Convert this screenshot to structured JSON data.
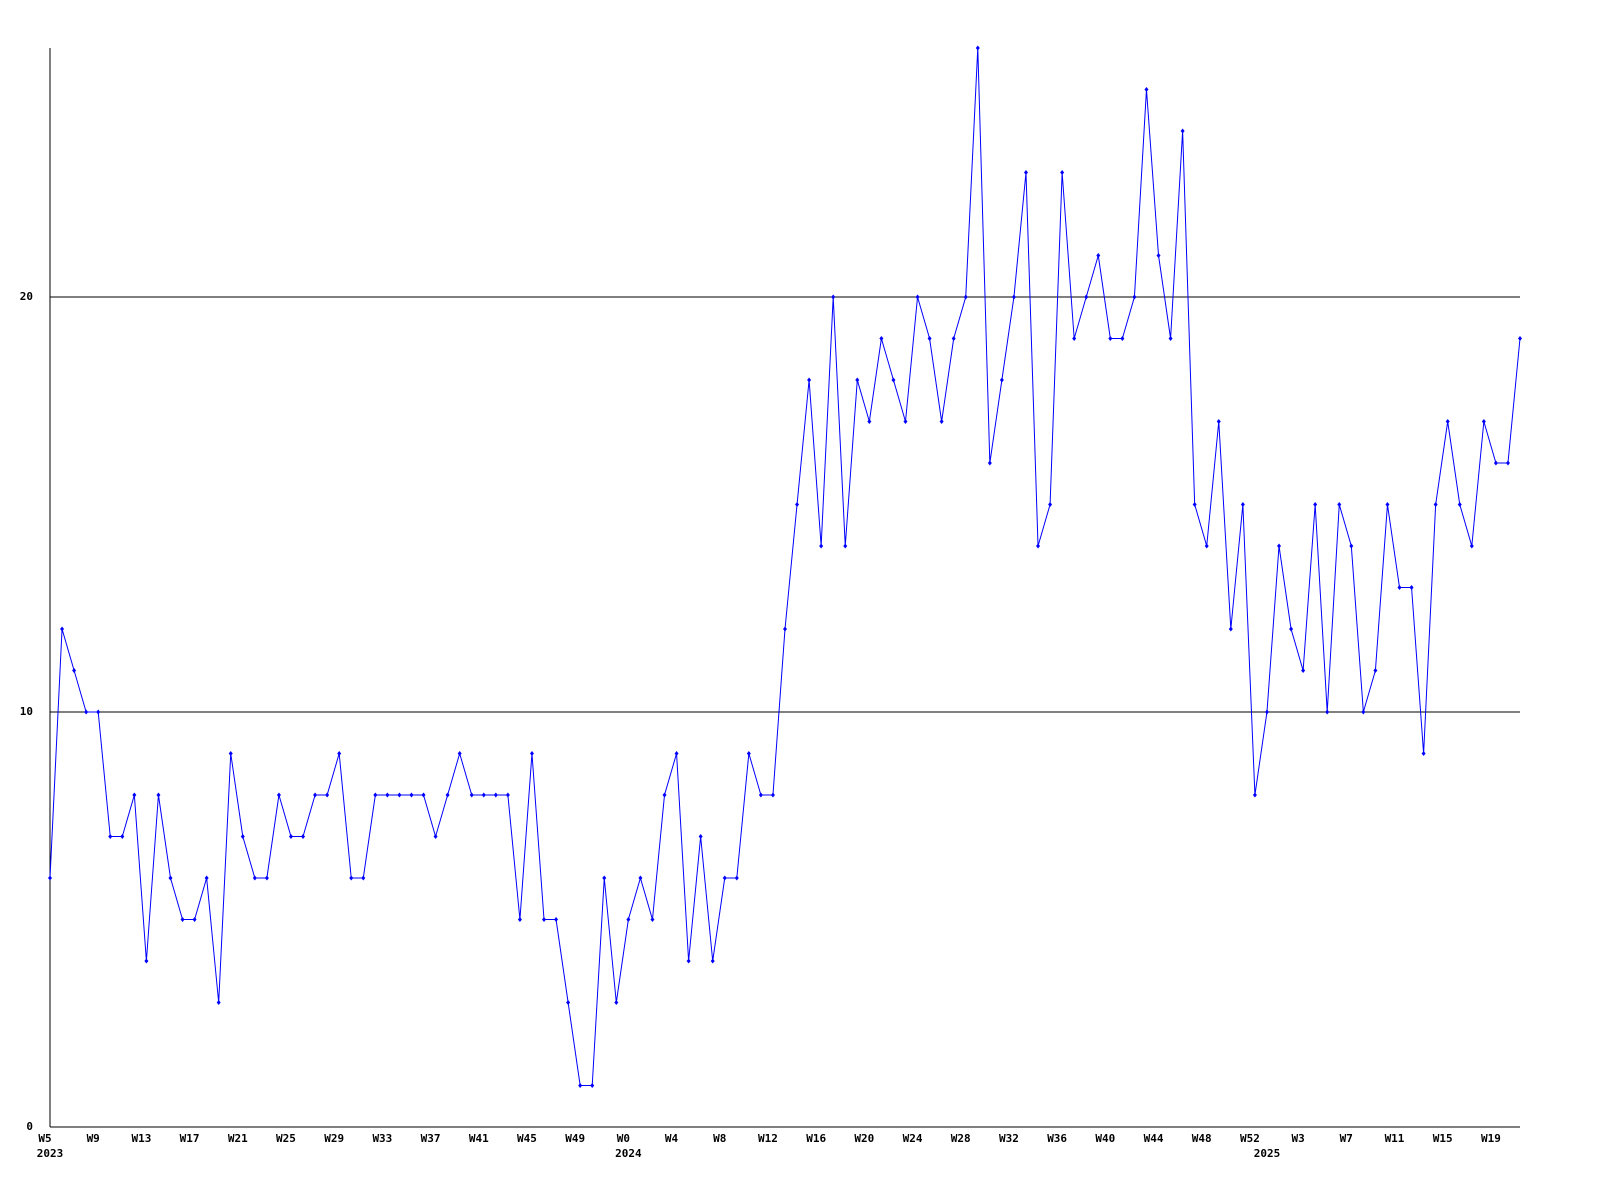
{
  "chart_data": {
    "type": "line",
    "categories": [
      "W5",
      null,
      null,
      null,
      "W9",
      null,
      null,
      null,
      "W13",
      null,
      null,
      null,
      "W17",
      null,
      null,
      null,
      "W21",
      null,
      null,
      null,
      "W25",
      null,
      null,
      null,
      "W29",
      null,
      null,
      null,
      "W33",
      null,
      null,
      null,
      "W37",
      null,
      null,
      null,
      "W41",
      null,
      null,
      null,
      "W45",
      null,
      null,
      null,
      "W49",
      null,
      null,
      null,
      "W0",
      null,
      null,
      null,
      "W4",
      null,
      null,
      null,
      "W8",
      null,
      null,
      null,
      "W12",
      null,
      null,
      null,
      "W16",
      null,
      null,
      null,
      "W20",
      null,
      null,
      null,
      "W24",
      null,
      null,
      null,
      "W28",
      null,
      null,
      null,
      "W32",
      null,
      null,
      null,
      "W36",
      null,
      null,
      null,
      "W40",
      null,
      null,
      null,
      "W44",
      null,
      null,
      null,
      "W48",
      null,
      null,
      null,
      "W52",
      null,
      null,
      null,
      "W3",
      null,
      null,
      null,
      "W7",
      null,
      null,
      null,
      "W11",
      null,
      null,
      null,
      "W15",
      null,
      null,
      null,
      "W19",
      null,
      null
    ],
    "years": [
      "2023",
      null,
      null,
      null,
      null,
      null,
      null,
      null,
      null,
      null,
      null,
      null,
      null,
      null,
      null,
      null,
      null,
      null,
      null,
      null,
      null,
      null,
      null,
      null,
      null,
      null,
      null,
      null,
      null,
      null,
      null,
      null,
      null,
      null,
      null,
      null,
      null,
      null,
      null,
      null,
      null,
      null,
      null,
      null,
      null,
      null,
      null,
      null,
      "2024",
      null,
      null,
      null,
      null,
      null,
      null,
      null,
      null,
      null,
      null,
      null,
      null,
      null,
      null,
      null,
      null,
      null,
      null,
      null,
      null,
      null,
      null,
      null,
      null,
      null,
      null,
      null,
      null,
      null,
      null,
      null,
      null,
      null,
      null,
      null,
      null,
      null,
      null,
      null,
      null,
      null,
      null,
      null,
      null,
      null,
      null,
      null,
      null,
      null,
      null,
      null,
      null,
      "2025",
      null,
      null,
      null,
      null,
      null,
      null,
      null,
      null,
      null,
      null,
      null,
      null,
      null,
      null,
      null,
      null,
      null,
      null,
      null,
      null
    ],
    "series": [
      {
        "color": "#0000ff",
        "values": [
          6,
          12,
          11,
          10,
          10,
          7,
          7,
          8,
          4,
          8,
          6,
          5,
          5,
          6,
          3,
          9,
          7,
          6,
          6,
          8,
          7,
          7,
          8,
          8,
          9,
          6,
          6,
          8,
          8,
          8,
          8,
          8,
          7,
          8,
          9,
          8,
          8,
          8,
          8,
          5,
          9,
          5,
          5,
          3,
          1,
          1,
          6,
          3,
          5,
          6,
          5,
          8,
          9,
          4,
          7,
          4,
          6,
          6,
          9,
          8,
          8,
          12,
          15,
          18,
          14,
          20,
          14,
          18,
          17,
          19,
          18,
          17,
          20,
          19,
          17,
          19,
          20,
          26,
          16,
          18,
          20,
          23,
          14,
          15,
          23,
          19,
          20,
          21,
          19,
          19,
          20,
          25,
          21,
          19,
          24,
          15,
          14,
          17,
          12,
          15,
          8,
          10,
          14,
          12,
          11,
          15,
          10,
          15,
          14,
          10,
          11,
          15,
          13,
          13,
          9,
          15,
          17,
          15,
          14,
          17,
          16,
          16,
          19
        ]
      }
    ],
    "ylim": [
      0,
      26
    ],
    "yticks": [
      0,
      10,
      20
    ],
    "grid": true
  }
}
